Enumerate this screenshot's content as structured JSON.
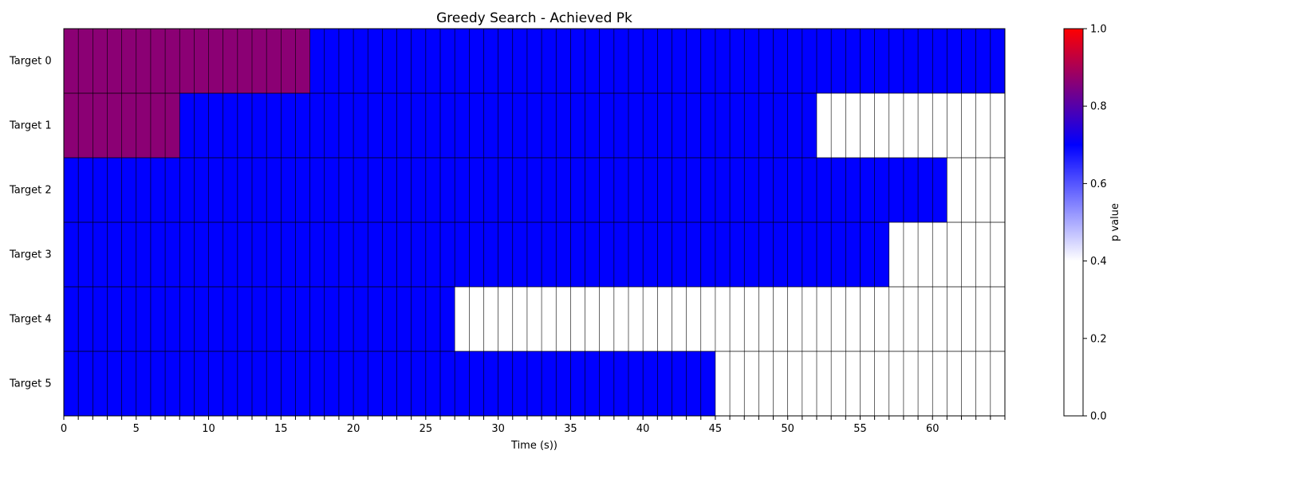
{
  "chart_data": {
    "type": "heatmap",
    "title": "Greedy Search - Achieved Pk",
    "xlabel": "Time (s))",
    "colorbar_label": "p value",
    "rows": [
      "Target 0",
      "Target 1",
      "Target 2",
      "Target 3",
      "Target 4",
      "Target 5"
    ],
    "x_count": 65,
    "xlim": [
      0,
      65
    ],
    "x_ticks": [
      0,
      5,
      10,
      15,
      20,
      25,
      30,
      35,
      40,
      45,
      50,
      55,
      60
    ],
    "colorbar_range": [
      0,
      1
    ],
    "colorbar_ticks": [
      "0.0",
      "0.2",
      "0.4",
      "0.6",
      "0.8",
      "1.0"
    ],
    "colormap_stops": [
      {
        "value": 0.0,
        "color": "#ffffff"
      },
      {
        "value": 0.4,
        "color": "#ffffff"
      },
      {
        "value": 0.7,
        "color": "#0000ff"
      },
      {
        "value": 1.0,
        "color": "#ff0000"
      }
    ],
    "segments": [
      [
        {
          "start": 0,
          "end": 17,
          "value": 0.9
        },
        {
          "start": 17,
          "end": 65,
          "value": 0.7
        }
      ],
      [
        {
          "start": 0,
          "end": 8,
          "value": 0.9
        },
        {
          "start": 8,
          "end": 52,
          "value": 0.7
        },
        {
          "start": 52,
          "end": 65,
          "value": 0.0
        }
      ],
      [
        {
          "start": 0,
          "end": 61,
          "value": 0.7
        },
        {
          "start": 61,
          "end": 65,
          "value": 0.0
        }
      ],
      [
        {
          "start": 0,
          "end": 57,
          "value": 0.7
        },
        {
          "start": 57,
          "end": 65,
          "value": 0.0
        }
      ],
      [
        {
          "start": 0,
          "end": 27,
          "value": 0.7
        },
        {
          "start": 27,
          "end": 65,
          "value": 0.0
        }
      ],
      [
        {
          "start": 0,
          "end": 45,
          "value": 0.7
        },
        {
          "start": 45,
          "end": 65,
          "value": 0.0
        }
      ]
    ],
    "colors": {
      "high_pk": "#8b0074",
      "mid_pk": "#0000ff",
      "none": "#ffffff",
      "grid": "#000000"
    },
    "grid": true,
    "legend": "right-colorbar"
  }
}
